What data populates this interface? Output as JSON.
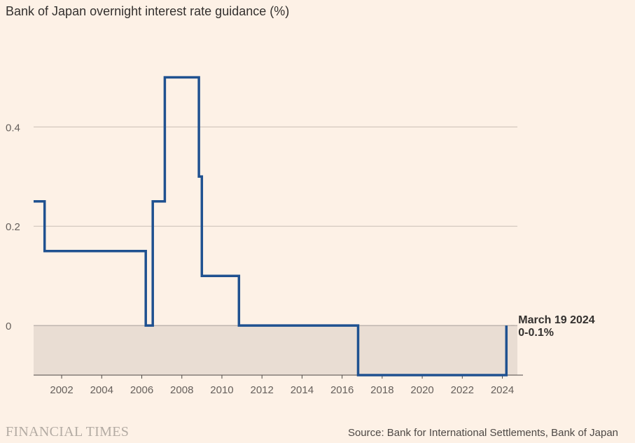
{
  "chart_data": {
    "type": "line",
    "title": "Bank of Japan overnight interest rate guidance (%)",
    "xlabel": "",
    "ylabel": "",
    "xlim": [
      2000.6,
      2024.75
    ],
    "ylim": [
      -0.1,
      0.55
    ],
    "x_ticks": [
      "2002",
      "2004",
      "2006",
      "2008",
      "2010",
      "2012",
      "2014",
      "2016",
      "2018",
      "2020",
      "2022",
      "2024"
    ],
    "y_ticks": [
      {
        "value": 0,
        "label": "0"
      },
      {
        "value": 0.2,
        "label": "0.2"
      },
      {
        "value": 0.4,
        "label": "0.4"
      }
    ],
    "grid": true,
    "negative_region_shaded": true,
    "step_series": {
      "x": [
        2000.6,
        2001.15,
        2001.15,
        2006.2,
        2006.2,
        2006.55,
        2006.55,
        2007.15,
        2007.15,
        2008.85,
        2008.85,
        2009.0,
        2009.0,
        2010.85,
        2010.85,
        2016.8,
        2016.8,
        2024.2,
        2024.2
      ],
      "y": [
        0.25,
        0.25,
        0.15,
        0.15,
        0,
        0,
        0.25,
        0.25,
        0.5,
        0.5,
        0.3,
        0.3,
        0.1,
        0.1,
        0,
        0,
        -0.1,
        -0.1,
        0
      ]
    },
    "annotation": {
      "line1": "March 19 2024",
      "line2": "0-0.1%",
      "x": 2024.2,
      "y": 0
    },
    "colors": {
      "line": "#1f5190",
      "grid": "#c9bfb5",
      "zero_line": "#a7a09a",
      "shade": "#e9ddd3",
      "background": "#fdf1e6"
    }
  },
  "footer": {
    "brand": "FINANCIAL TIMES",
    "source": "Source: Bank for International Settlements, Bank of Japan"
  }
}
